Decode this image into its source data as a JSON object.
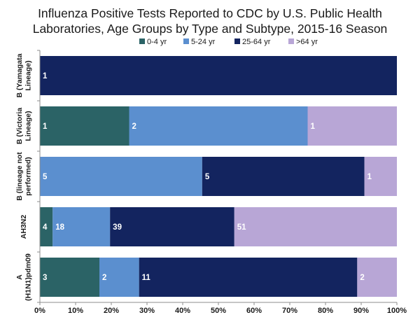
{
  "chart_data": {
    "type": "bar",
    "orientation": "horizontal",
    "stacked": "percent",
    "title_lines": [
      "Influenza Positive Tests Reported to CDC by U.S. Public Health",
      "Laboratories, Age Groups by Type and Subtype, 2015-16 Season"
    ],
    "xlim": [
      0,
      100
    ],
    "x_ticks": [
      "0%",
      "10%",
      "20%",
      "30%",
      "40%",
      "50%",
      "60%",
      "70%",
      "80%",
      "90%",
      "100%"
    ],
    "grid": false,
    "legend_position": "top",
    "categories": [
      [
        "B (Yamagata",
        "Lineage)"
      ],
      [
        "B (Victoria",
        "Lineage)"
      ],
      [
        "B (lineage not",
        "performed)"
      ],
      [
        "AH3N2"
      ],
      [
        "A",
        "(H1N1)pdm09"
      ]
    ],
    "series": [
      {
        "name": "0-4 yr",
        "color": "#2b6366",
        "counts": [
          0,
          1,
          0,
          4,
          3
        ],
        "labels": [
          "",
          "1",
          "",
          "4",
          "3"
        ]
      },
      {
        "name": "5-24 yr",
        "color": "#5b8fcf",
        "counts": [
          0,
          2,
          5,
          18,
          2
        ],
        "labels": [
          "",
          "2",
          "5",
          "18",
          "2"
        ]
      },
      {
        "name": "25-64 yr",
        "color": "#13245f",
        "counts": [
          1,
          0,
          5,
          39,
          11
        ],
        "labels": [
          "1",
          "",
          "5",
          "39",
          "11"
        ]
      },
      {
        "name": ">64 yr",
        "color": "#b8a6d6",
        "counts": [
          0,
          1,
          1,
          51,
          2
        ],
        "labels": [
          "",
          "1",
          "1",
          "51",
          "2"
        ]
      }
    ]
  }
}
